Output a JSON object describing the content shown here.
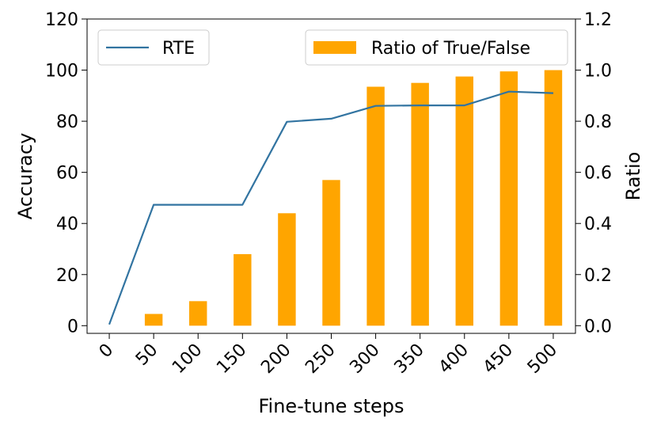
{
  "chart_data": {
    "type": "bar+line",
    "title": "",
    "xlabel": "Fine-tune steps",
    "ylabel_left": "Accuracy",
    "ylabel_right": "Ratio",
    "categories": [
      "0",
      "50",
      "100",
      "150",
      "200",
      "250",
      "300",
      "350",
      "400",
      "450",
      "500"
    ],
    "yticks_left": [
      "0",
      "20",
      "40",
      "60",
      "80",
      "100",
      "120"
    ],
    "yticks_right": [
      "0.0",
      "0.2",
      "0.4",
      "0.6",
      "0.8",
      "1.0",
      "1.2"
    ],
    "ylim_left": [
      -3,
      120
    ],
    "ylim_right": [
      -0.03,
      1.2
    ],
    "grid": false,
    "series": [
      {
        "name": "RTE",
        "type": "line",
        "axis": "left",
        "color": "#3274a1",
        "values": [
          0.5,
          47.3,
          47.3,
          47.3,
          79.8,
          81,
          86,
          86.2,
          86.2,
          91.6,
          91
        ]
      },
      {
        "name": "Ratio of True/False",
        "type": "bar",
        "axis": "right",
        "color": "#ffa500",
        "values": [
          0.0,
          0.046,
          0.096,
          0.28,
          0.44,
          0.57,
          0.935,
          0.95,
          0.975,
          0.995,
          1.0
        ]
      }
    ],
    "legends": [
      {
        "label": "RTE",
        "placement": "upper-left"
      },
      {
        "label": "Ratio of True/False",
        "placement": "upper-right"
      }
    ]
  }
}
